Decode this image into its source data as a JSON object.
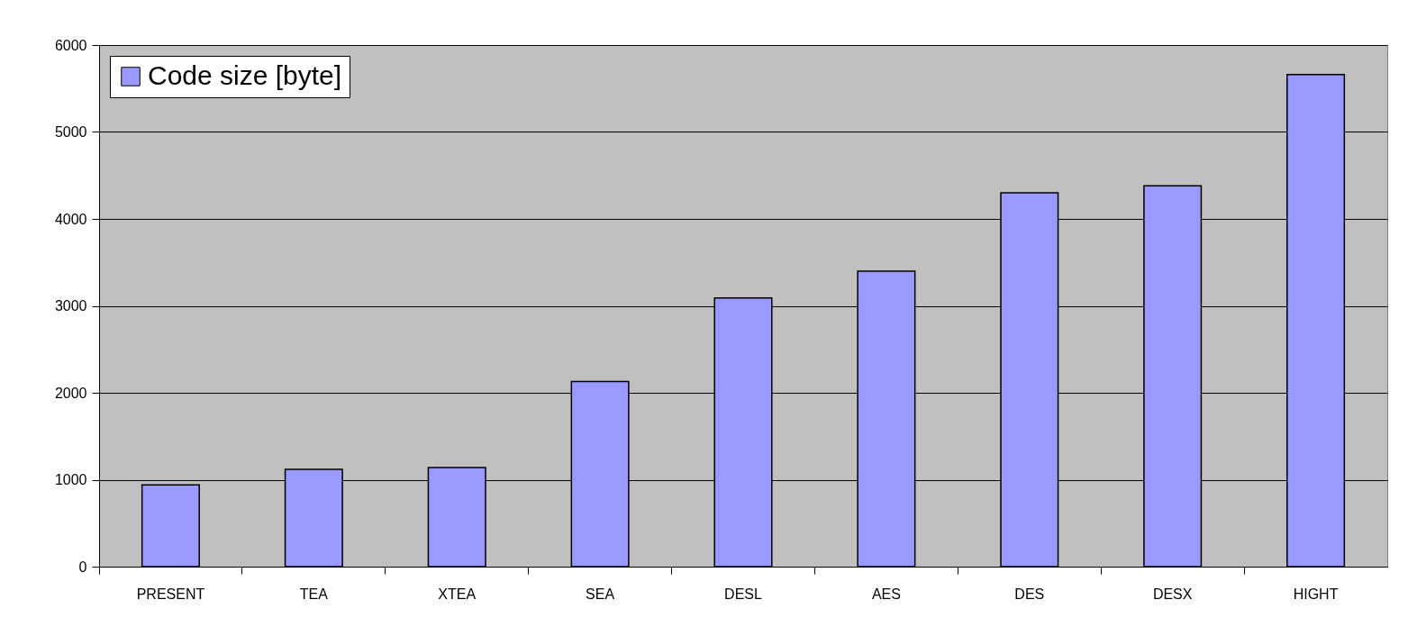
{
  "chart_data": {
    "type": "bar",
    "categories": [
      "PRESENT",
      "TEA",
      "XTEA",
      "SEA",
      "DESL",
      "AES",
      "DES",
      "DESX",
      "HIGHT"
    ],
    "series": [
      {
        "name": "Code size [byte]",
        "color": "#9999ff",
        "values": [
          940,
          1120,
          1140,
          2130,
          3090,
          3400,
          4300,
          4380,
          5660
        ]
      }
    ],
    "ylim": [
      0,
      6000
    ],
    "yticks": [
      0,
      1000,
      2000,
      3000,
      4000,
      5000,
      6000
    ],
    "grid": "y",
    "legend": "top left"
  }
}
